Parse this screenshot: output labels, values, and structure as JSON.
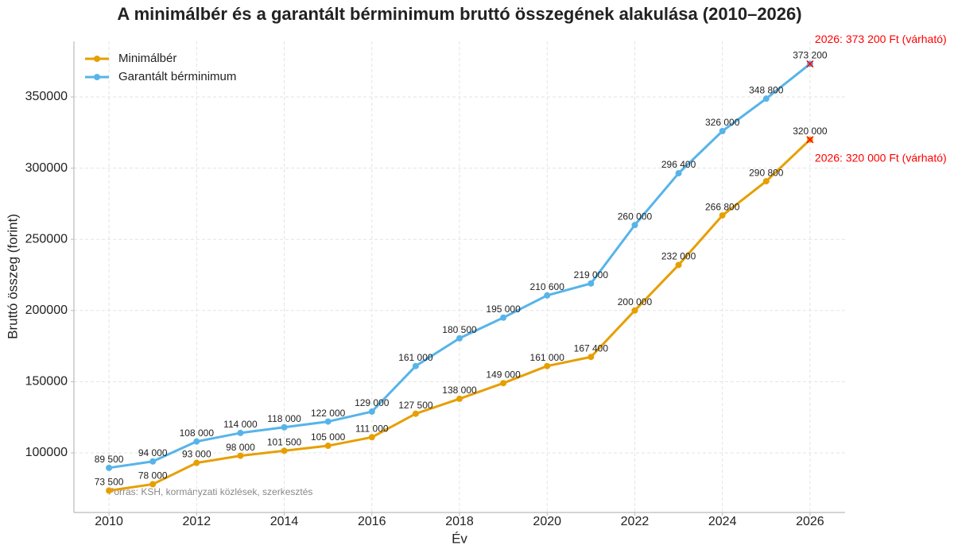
{
  "chart_data": {
    "type": "line",
    "title": "A minimálbér és a garantált bérminimum bruttó összegének alakulása (2010–2026)",
    "x_label": "Év",
    "y_label": "Bruttó összeg (forint)",
    "x": [
      2010,
      2011,
      2012,
      2013,
      2014,
      2015,
      2016,
      2017,
      2018,
      2019,
      2020,
      2021,
      2022,
      2023,
      2024,
      2025,
      2026
    ],
    "series": [
      {
        "name": "Minimálbér",
        "color": "#e69f00",
        "values": [
          73500,
          78000,
          93000,
          98000,
          101500,
          105000,
          111000,
          127500,
          138000,
          149000,
          161000,
          167400,
          200000,
          232000,
          266800,
          290800,
          320000
        ],
        "value_labels": [
          "73 500",
          "78 000",
          "93 000",
          "98 000",
          "101 500",
          "105 000",
          "111 000",
          "127 500",
          "138 000",
          "149 000",
          "161 000",
          "167 400",
          "200 000",
          "232 000",
          "266 800",
          "290 800",
          "320 000"
        ]
      },
      {
        "name": "Garantált bérminimum",
        "color": "#56b4e9",
        "values": [
          89500,
          94000,
          108000,
          114000,
          118000,
          122000,
          129000,
          161000,
          180500,
          195000,
          210600,
          219000,
          260000,
          296400,
          326000,
          348800,
          373200
        ],
        "value_labels": [
          "89 500",
          "94 000",
          "108 000",
          "114 000",
          "118 000",
          "122 000",
          "129 000",
          "161 000",
          "180 500",
          "195 000",
          "210 600",
          "219 000",
          "260 000",
          "296 400",
          "326 000",
          "348 800",
          "373 200"
        ]
      }
    ],
    "annotations": [
      {
        "text": "2026: 373 200 Ft (várható)",
        "x": 2026,
        "y": 373200,
        "color": "#ff0000"
      },
      {
        "text": "2026: 320 000 Ft (várható)",
        "x": 2026,
        "y": 320000,
        "color": "#ff0000"
      }
    ],
    "source": "Forrás: KSH, kormányzati közlések, szerkesztés",
    "xlim": [
      2009.2,
      2026.8
    ],
    "xticks": [
      2010,
      2012,
      2014,
      2016,
      2018,
      2020,
      2022,
      2024,
      2026
    ],
    "ylim": [
      58150,
      389060
    ],
    "yticks": [
      100000,
      150000,
      200000,
      250000,
      300000,
      350000
    ],
    "grid": true,
    "legend": "upper-left"
  }
}
